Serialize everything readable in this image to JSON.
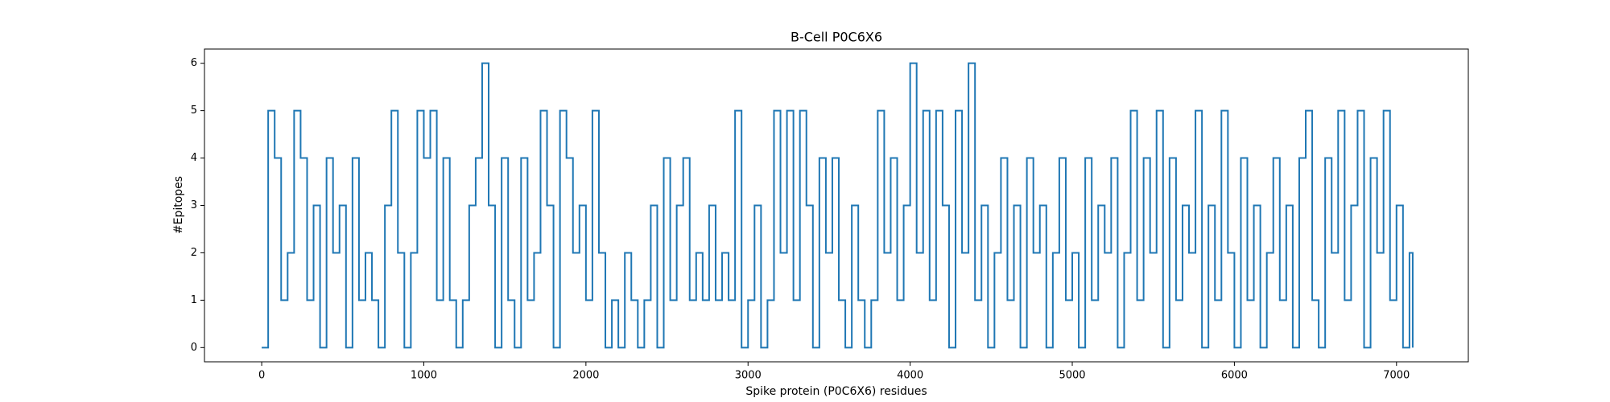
{
  "chart_data": {
    "type": "line",
    "title": "B-Cell P0C6X6",
    "x_label": "Spike protein (P0C6X6) residues",
    "y_label": "#Epitopes",
    "drawstyle": "steps-post",
    "x": [
      0,
      40,
      80,
      120,
      160,
      200,
      240,
      280,
      320,
      360,
      400,
      440,
      480,
      520,
      560,
      600,
      640,
      680,
      720,
      760,
      800,
      840,
      880,
      920,
      960,
      1000,
      1040,
      1080,
      1120,
      1160,
      1200,
      1240,
      1280,
      1320,
      1360,
      1400,
      1440,
      1480,
      1520,
      1560,
      1600,
      1640,
      1680,
      1720,
      1760,
      1800,
      1840,
      1880,
      1920,
      1960,
      2000,
      2040,
      2080,
      2120,
      2160,
      2200,
      2240,
      2280,
      2320,
      2360,
      2400,
      2440,
      2480,
      2520,
      2560,
      2600,
      2640,
      2680,
      2720,
      2760,
      2800,
      2840,
      2880,
      2920,
      2960,
      3000,
      3040,
      3080,
      3120,
      3160,
      3200,
      3240,
      3280,
      3320,
      3360,
      3400,
      3440,
      3480,
      3520,
      3560,
      3600,
      3640,
      3680,
      3720,
      3760,
      3800,
      3840,
      3880,
      3920,
      3960,
      4000,
      4040,
      4080,
      4120,
      4160,
      4200,
      4240,
      4280,
      4320,
      4360,
      4400,
      4440,
      4480,
      4520,
      4560,
      4600,
      4640,
      4680,
      4720,
      4760,
      4800,
      4840,
      4880,
      4920,
      4960,
      5000,
      5040,
      5080,
      5120,
      5160,
      5200,
      5240,
      5280,
      5320,
      5360,
      5400,
      5440,
      5480,
      5520,
      5560,
      5600,
      5640,
      5680,
      5720,
      5760,
      5800,
      5840,
      5880,
      5920,
      5960,
      6000,
      6040,
      6080,
      6120,
      6160,
      6200,
      6240,
      6280,
      6320,
      6360,
      6400,
      6440,
      6480,
      6520,
      6560,
      6600,
      6640,
      6680,
      6720,
      6760,
      6800,
      6840,
      6880,
      6920,
      6960,
      7000,
      7040,
      7080,
      7100
    ],
    "series": [
      {
        "color": "#1f77b4",
        "values": [
          0,
          5,
          4,
          1,
          2,
          5,
          4,
          1,
          3,
          0,
          4,
          2,
          3,
          0,
          4,
          1,
          2,
          1,
          0,
          3,
          5,
          2,
          0,
          2,
          5,
          4,
          5,
          1,
          4,
          1,
          0,
          1,
          3,
          4,
          6,
          3,
          0,
          4,
          1,
          0,
          4,
          1,
          2,
          5,
          3,
          0,
          5,
          4,
          2,
          3,
          1,
          5,
          2,
          0,
          1,
          0,
          2,
          1,
          0,
          1,
          3,
          0,
          4,
          1,
          3,
          4,
          1,
          2,
          1,
          3,
          1,
          2,
          1,
          5,
          0,
          1,
          3,
          0,
          1,
          5,
          2,
          5,
          1,
          5,
          3,
          0,
          4,
          2,
          4,
          1,
          0,
          3,
          1,
          0,
          1,
          5,
          2,
          4,
          1,
          3,
          6,
          2,
          5,
          1,
          5,
          3,
          0,
          5,
          2,
          6,
          1,
          3,
          0,
          2,
          4,
          1,
          3,
          0,
          4,
          2,
          3,
          0,
          2,
          4,
          1,
          2,
          0,
          4,
          1,
          3,
          2,
          4,
          0,
          2,
          5,
          1,
          4,
          2,
          5,
          0,
          4,
          1,
          3,
          2,
          5,
          0,
          3,
          1,
          5,
          2,
          0,
          4,
          1,
          3,
          0,
          2,
          4,
          1,
          3,
          0,
          4,
          5,
          1,
          0,
          4,
          2,
          5,
          1,
          3,
          5,
          0,
          4,
          2,
          5,
          1,
          3,
          0,
          2,
          0
        ]
      }
    ],
    "xlim": [
      -353,
      7443
    ],
    "xticks": [
      0,
      1000,
      2000,
      3000,
      4000,
      5000,
      6000,
      7000
    ],
    "ylim": [
      -0.3,
      6.3
    ],
    "yticks": [
      0,
      1,
      2,
      3,
      4,
      5,
      6
    ]
  }
}
